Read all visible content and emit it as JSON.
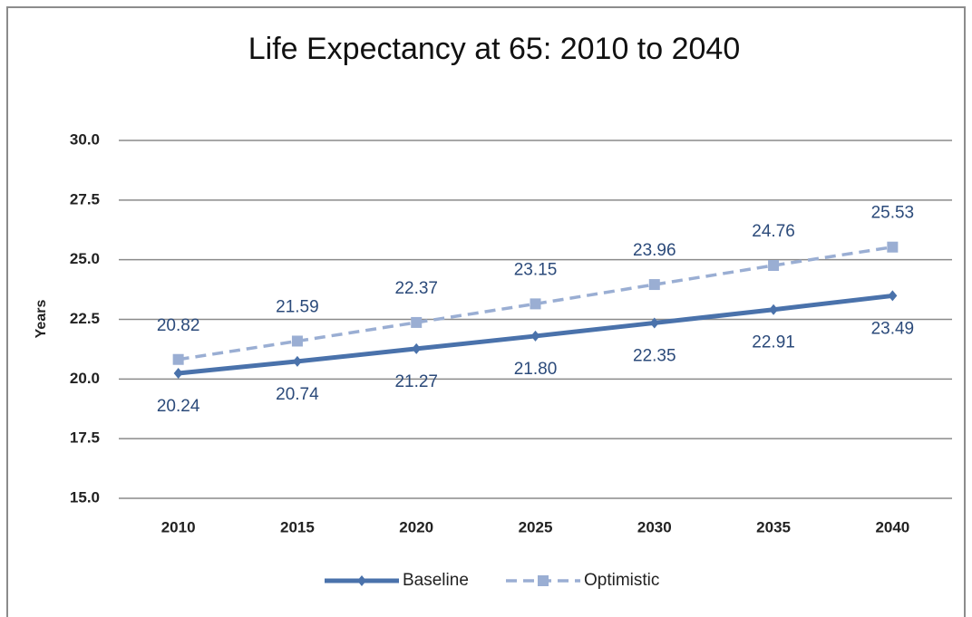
{
  "chart_data": {
    "type": "line",
    "title": "Life Expectancy at 65: 2010 to 2040",
    "ylabel": "Years",
    "categories": [
      "2010",
      "2015",
      "2020",
      "2025",
      "2030",
      "2035",
      "2040"
    ],
    "series": [
      {
        "name": "Baseline",
        "color": "#4a72ab",
        "values": [
          20.24,
          20.74,
          21.27,
          21.8,
          22.35,
          22.91,
          23.49
        ],
        "value_labels": [
          "20.24",
          "20.74",
          "21.27",
          "21.80",
          "22.35",
          "22.91",
          "23.49"
        ]
      },
      {
        "name": "Optimistic",
        "color": "#9aaed3",
        "values": [
          20.82,
          21.59,
          22.37,
          23.15,
          23.96,
          24.76,
          25.53
        ],
        "value_labels": [
          "20.82",
          "21.59",
          "22.37",
          "23.15",
          "23.96",
          "24.76",
          "25.53"
        ]
      }
    ],
    "ylim": [
      15,
      30
    ],
    "yticks": [
      {
        "value": 15,
        "label": "15.0"
      },
      17.5,
      {
        "value": 20,
        "label": "20.0"
      },
      22.5,
      {
        "value": 25,
        "label": "25.0"
      },
      27.5,
      {
        "value": 30,
        "label": "30.0"
      }
    ],
    "grid": true,
    "legend": "bottom"
  }
}
